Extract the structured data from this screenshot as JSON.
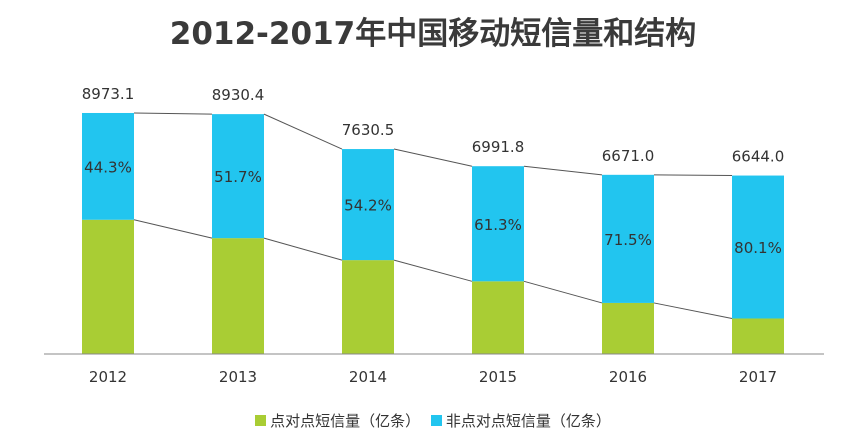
{
  "chart_data": {
    "type": "bar",
    "stacked": true,
    "title": "2012-2017年中国移动短信量和结构",
    "xlabel": "",
    "ylabel": "",
    "categories": [
      "2012",
      "2013",
      "2014",
      "2015",
      "2016",
      "2017"
    ],
    "ylim": [
      0,
      10000
    ],
    "grid": false,
    "legend_position": "bottom",
    "totals": [
      "8973.1",
      "8930.4",
      "7630.5",
      "6991.8",
      "6671.0",
      "6644.0"
    ],
    "total_values": [
      8973.1,
      8930.4,
      7630.5,
      6991.8,
      6671.0,
      6644.0
    ],
    "series": [
      {
        "name": "点对点短信量（亿条）",
        "color": "#a9cd34",
        "values": [
          4998.0,
          4313.4,
          3494.8,
          2705.8,
          1901.2,
          1322.2
        ]
      },
      {
        "name": "非点对点短信量（亿条）",
        "color": "#22c5ef",
        "values": [
          3975.1,
          4617.0,
          4135.7,
          4286.0,
          4769.8,
          5321.8
        ],
        "labels": [
          "44.3%",
          "51.7%",
          "54.2%",
          "61.3%",
          "71.5%",
          "80.1%"
        ]
      }
    ],
    "trend_lines": true
  }
}
